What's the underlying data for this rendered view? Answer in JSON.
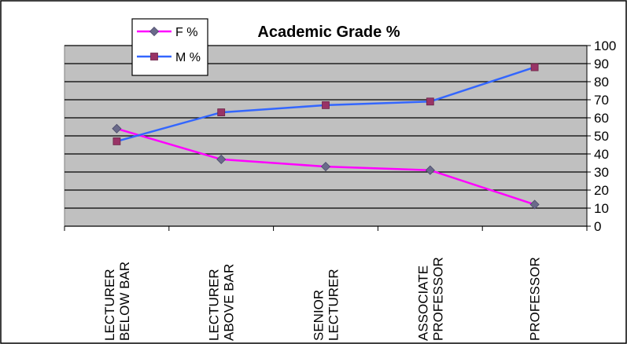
{
  "chart_data": {
    "type": "line",
    "title": "Academic Grade %",
    "xlabel": "",
    "ylabel": "",
    "categories": [
      [
        "LECTURER",
        "BELOW BAR"
      ],
      [
        "LECTURER",
        "ABOVE BAR"
      ],
      [
        "SENIOR",
        "LECTURER"
      ],
      [
        "ASSOCIATE",
        "PROFESSOR"
      ],
      [
        "PROFESSOR"
      ]
    ],
    "yticks": [
      "0",
      "10",
      "20",
      "30",
      "40",
      "50",
      "60",
      "70",
      "80",
      "90",
      "100"
    ],
    "ylim": [
      0,
      100
    ],
    "y_axis_side": "right",
    "grid": true,
    "plot_background": "#c0c0c0",
    "legend_position": "top-left",
    "series": [
      {
        "name": "F %",
        "color": "#ff00ff",
        "marker": "diamond",
        "marker_color": "#6a6a8a",
        "values": [
          54,
          37,
          33,
          31,
          12
        ]
      },
      {
        "name": "M %",
        "color": "#3366ff",
        "marker": "square",
        "marker_color": "#993366",
        "values": [
          47,
          63,
          67,
          69,
          88
        ]
      }
    ]
  }
}
